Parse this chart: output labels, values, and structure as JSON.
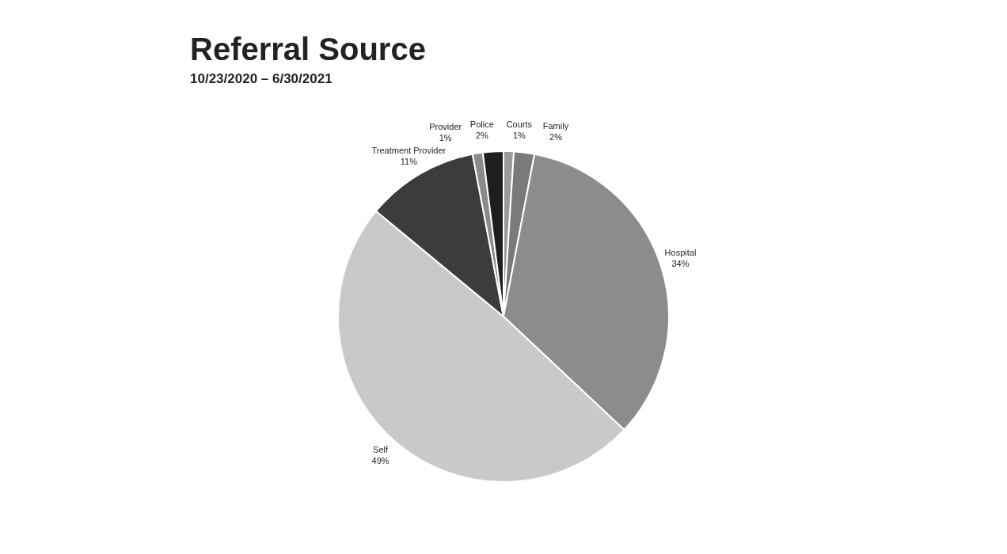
{
  "chart_data": {
    "type": "pie",
    "title": "Referral Source",
    "subtitle": "10/23/2020 – 6/30/2021",
    "categories": [
      "Courts",
      "Family",
      "Hospital",
      "Self",
      "Treatment Provider",
      "Provider",
      "Police"
    ],
    "values": [
      1,
      2,
      34,
      49,
      11,
      1,
      2
    ],
    "value_labels": [
      "1%",
      "2%",
      "34%",
      "49%",
      "11%",
      "1%",
      "2%"
    ],
    "colors": [
      "#9a9a9a",
      "#7a7a7a",
      "#8c8c8c",
      "#c9c9c9",
      "#3c3c3c",
      "#8a8a8a",
      "#1e1e1e"
    ],
    "legend": false
  }
}
